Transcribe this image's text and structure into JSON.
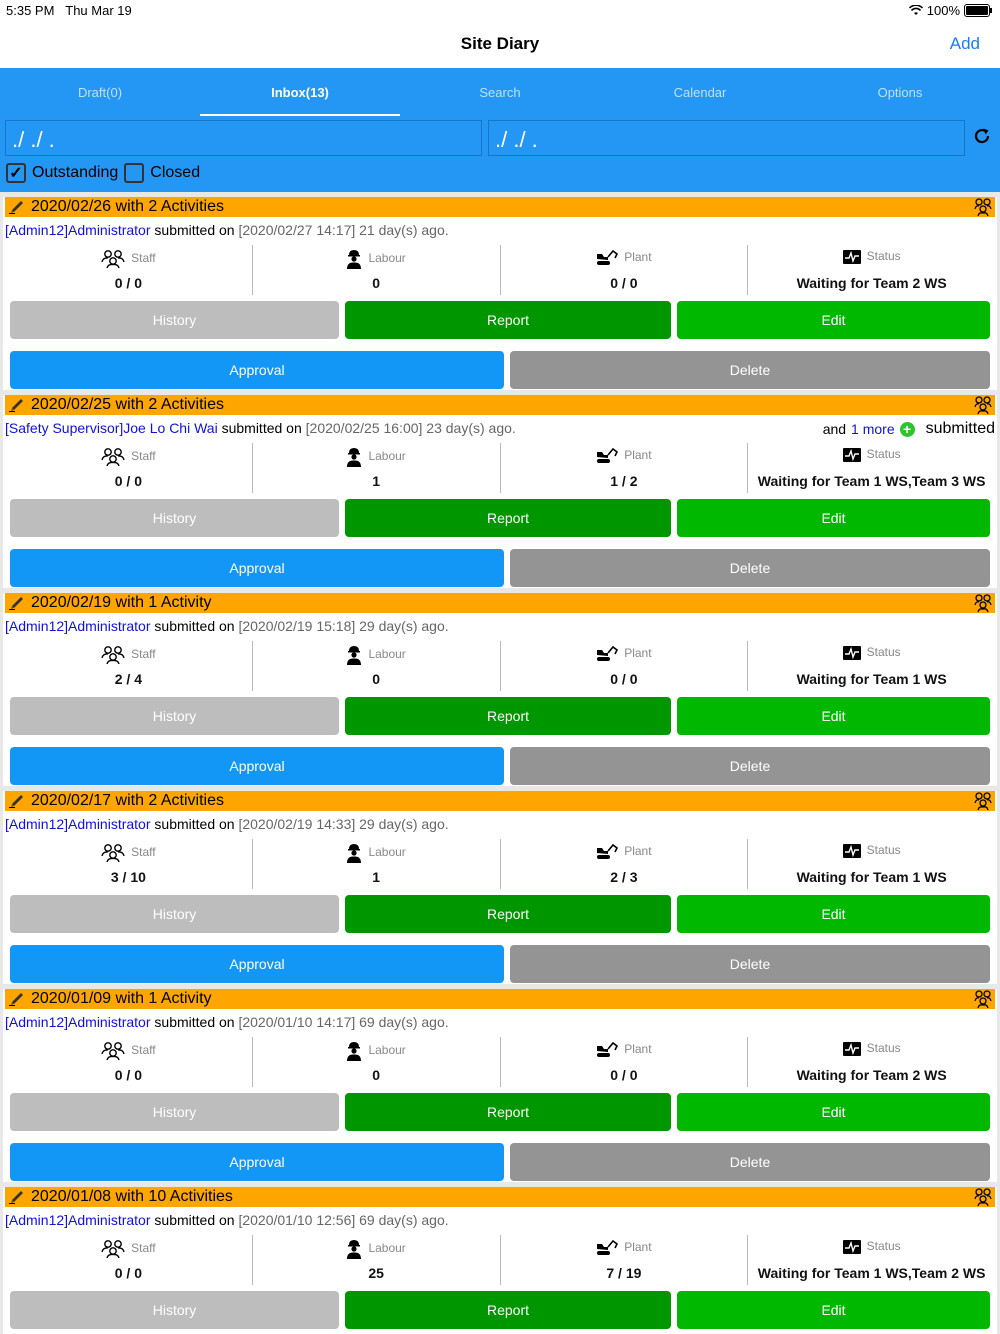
{
  "status_bar": {
    "time": "5:35 PM",
    "date": "Thu Mar 19",
    "battery": "100%"
  },
  "nav": {
    "title": "Site Diary",
    "add_label": "Add"
  },
  "tabs": [
    "Draft(0)",
    "Inbox(13)",
    "Search",
    "Calendar",
    "Options"
  ],
  "filters": {
    "date_from": "./ ./ .",
    "date_to": "./ ./ .",
    "outstanding_label": "Outstanding",
    "closed_label": "Closed"
  },
  "labels": {
    "staff": "Staff",
    "labour": "Labour",
    "plant": "Plant",
    "status": "Status",
    "submitted_on": "submitted on",
    "history": "History",
    "report": "Report",
    "edit": "Edit",
    "approval": "Approval",
    "delete": "Delete"
  },
  "entries": [
    {
      "title": "2020/02/26 with 2 Activities",
      "who": "[Admin12]Administrator",
      "when": "[2020/02/27 14:17] 21 day(s) ago.",
      "staff": "0 / 0",
      "labour": "0",
      "plant": "0 / 0",
      "status": "Waiting for Team 2 WS"
    },
    {
      "title": "2020/02/25 with 2 Activities",
      "who": "[Safety Supervisor]Joe Lo Chi Wai",
      "when": "[2020/02/25 16:00] 23 day(s) ago.",
      "extra_and": "and",
      "extra_more": "1 more",
      "extra_submitted": "submitted",
      "staff": "0 / 0",
      "labour": "1",
      "plant": "1 / 2",
      "status": "Waiting for Team 1 WS,Team 3 WS"
    },
    {
      "title": "2020/02/19 with 1 Activity",
      "who": "[Admin12]Administrator",
      "when": "[2020/02/19 15:18] 29 day(s) ago.",
      "staff": "2 / 4",
      "labour": "0",
      "plant": "0 / 0",
      "status": "Waiting for Team 1 WS"
    },
    {
      "title": "2020/02/17 with 2 Activities",
      "who": "[Admin12]Administrator",
      "when": "[2020/02/19 14:33] 29 day(s) ago.",
      "staff": "3 / 10",
      "labour": "1",
      "plant": "2 / 3",
      "status": "Waiting for Team 1 WS"
    },
    {
      "title": "2020/01/09 with 1 Activity",
      "who": "[Admin12]Administrator",
      "when": "[2020/01/10 14:17] 69 day(s) ago.",
      "staff": "0 / 0",
      "labour": "0",
      "plant": "0 / 0",
      "status": "Waiting for Team 2 WS"
    },
    {
      "title": "2020/01/08 with 10 Activities",
      "who": "[Admin12]Administrator",
      "when": "[2020/01/10 12:56] 69 day(s) ago.",
      "staff": "0 / 0",
      "labour": "25",
      "plant": "7 / 19",
      "status": "Waiting for Team 1 WS,Team 2 WS"
    }
  ]
}
